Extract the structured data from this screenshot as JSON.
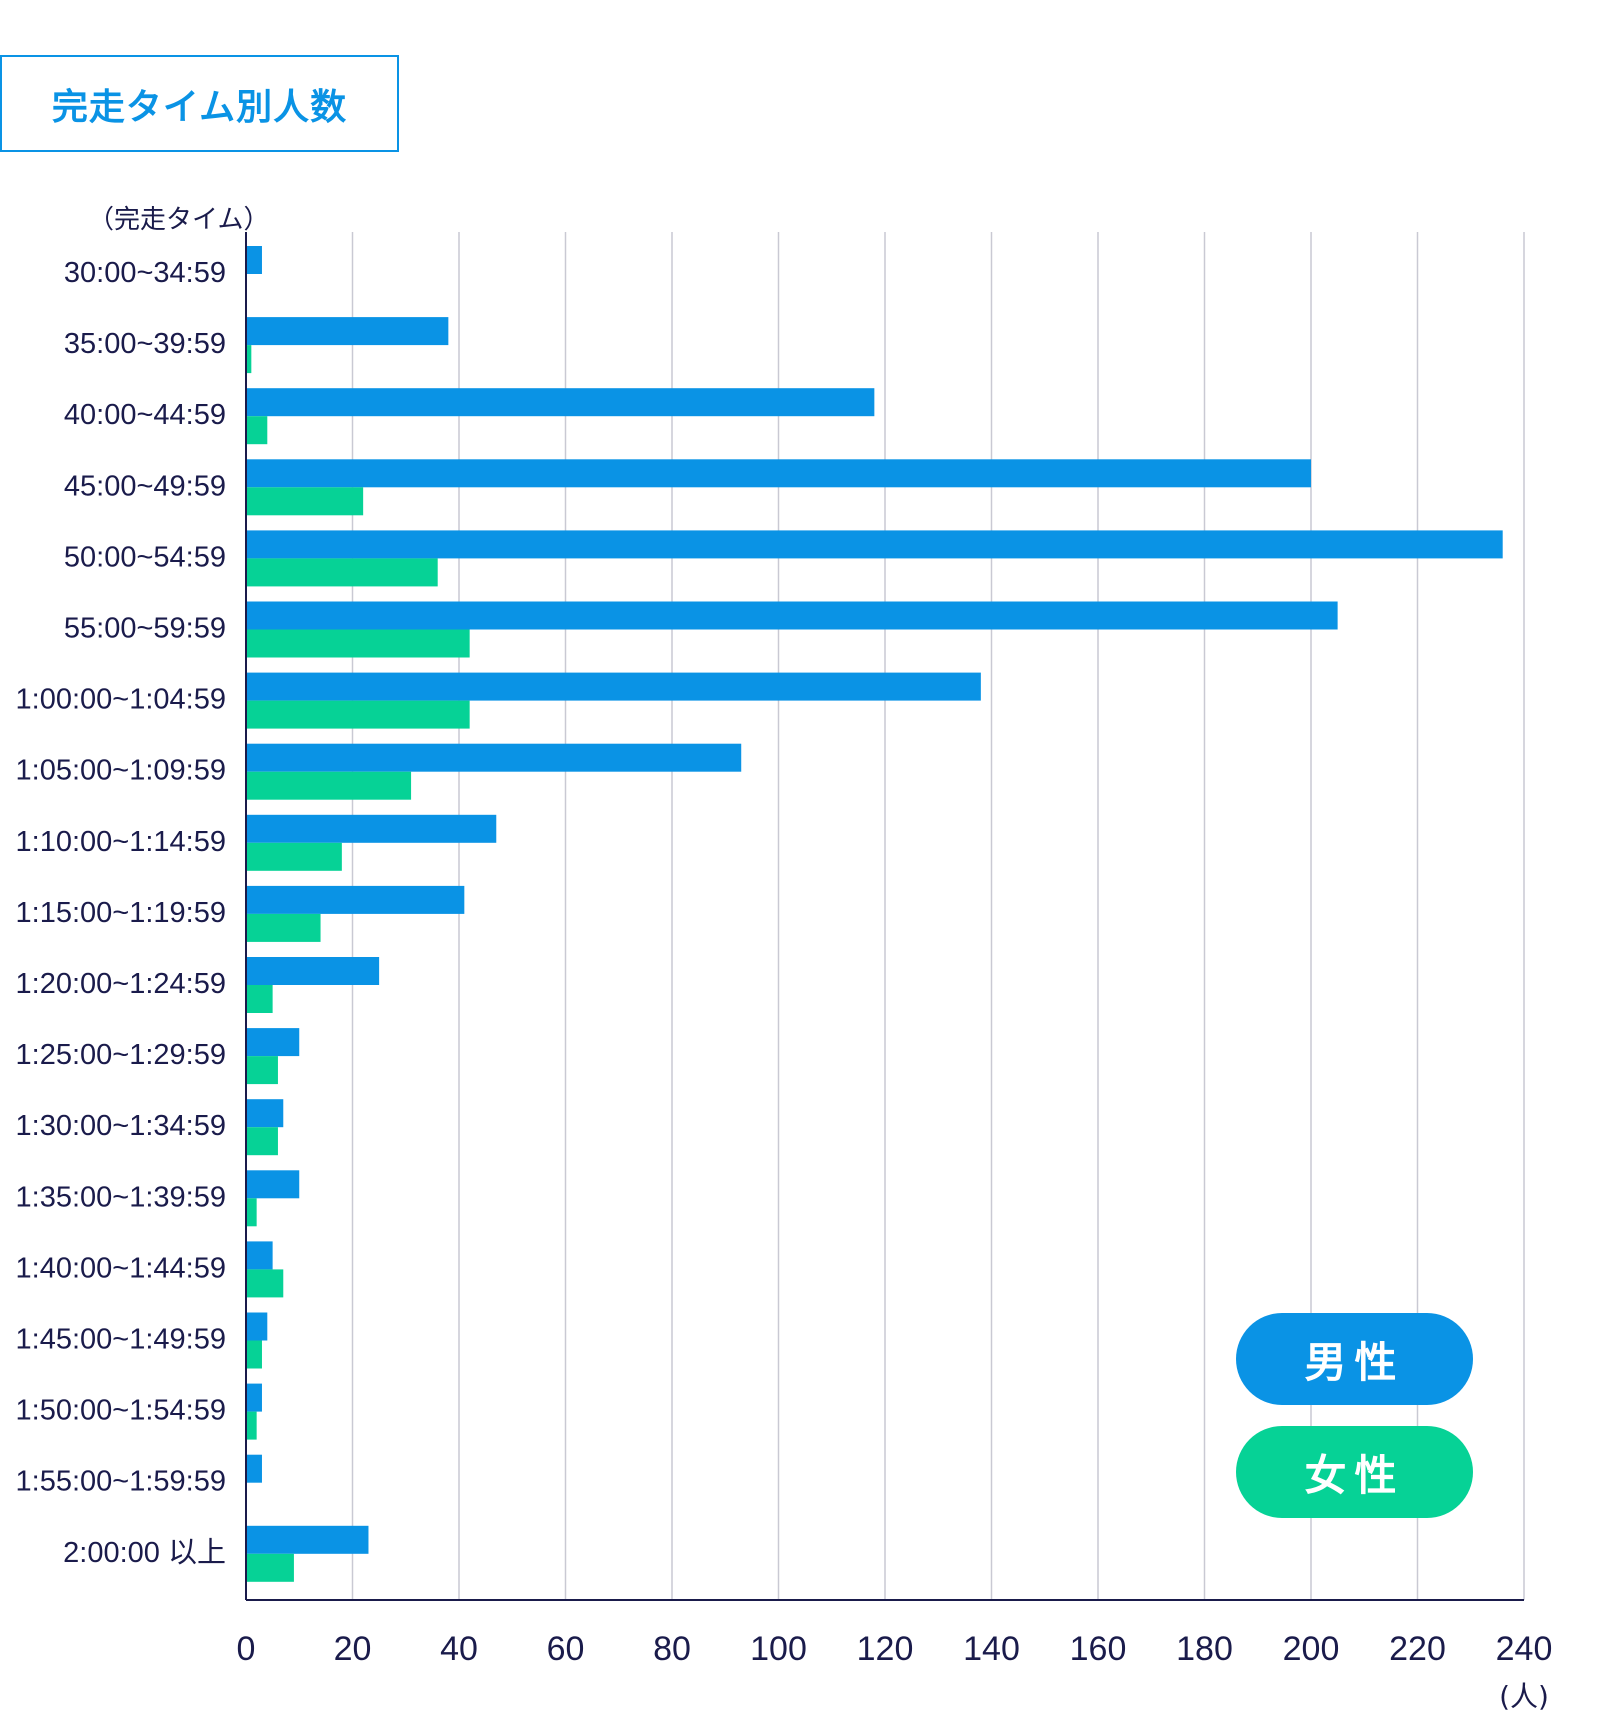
{
  "title": "完走タイム別人数",
  "chart_data": {
    "type": "bar",
    "orientation": "horizontal",
    "title": "完走タイム別人数",
    "ylabel": "（完走タイム）",
    "xlabel": "(人)",
    "xlim": [
      0,
      240
    ],
    "xticks": [
      "0",
      "20",
      "40",
      "60",
      "80",
      "100",
      "120",
      "140",
      "160",
      "180",
      "200",
      "220",
      "240"
    ],
    "grid": true,
    "legend_position": "bottom-right",
    "categories": [
      "30:00~34:59",
      "35:00~39:59",
      "40:00~44:59",
      "45:00~49:59",
      "50:00~54:59",
      "55:00~59:59",
      "1:00:00~1:04:59",
      "1:05:00~1:09:59",
      "1:10:00~1:14:59",
      "1:15:00~1:19:59",
      "1:20:00~1:24:59",
      "1:25:00~1:29:59",
      "1:30:00~1:34:59",
      "1:35:00~1:39:59",
      "1:40:00~1:44:59",
      "1:45:00~1:49:59",
      "1:50:00~1:54:59",
      "1:55:00~1:59:59",
      "2:00:00 以上"
    ],
    "series": [
      {
        "name": "男性",
        "color": "#0a93e5",
        "values": [
          3,
          38,
          118,
          200,
          236,
          205,
          138,
          93,
          47,
          41,
          25,
          10,
          7,
          10,
          5,
          4,
          3,
          3,
          23
        ]
      },
      {
        "name": "女性",
        "color": "#06d296",
        "values": [
          0,
          1,
          4,
          22,
          36,
          42,
          42,
          31,
          18,
          14,
          5,
          6,
          6,
          2,
          7,
          3,
          2,
          0,
          9
        ]
      }
    ]
  },
  "legend": {
    "male": "男性",
    "female": "女性"
  }
}
